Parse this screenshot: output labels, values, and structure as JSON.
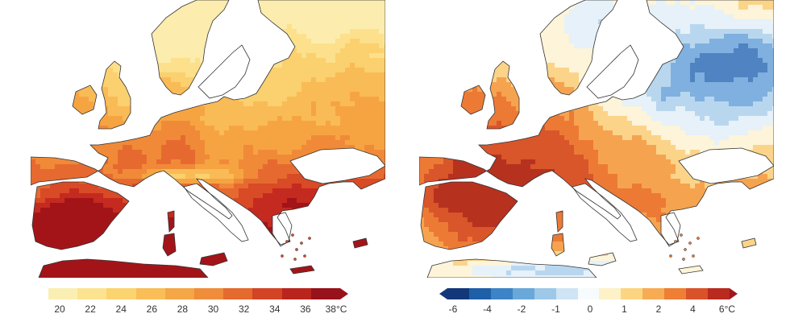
{
  "left_map": {
    "palette": [
      "#fcecae",
      "#fce08b",
      "#fbd06e",
      "#f9bb56",
      "#f6a442",
      "#f08a38",
      "#e66a2f",
      "#d94a26",
      "#c42a1f",
      "#a31419"
    ],
    "coast": "#333333",
    "sea": "#ffffff",
    "colorbar": {
      "colors": [
        "#fbeeb3",
        "#fce38f",
        "#fbd36f",
        "#f9be58",
        "#f5a646",
        "#ef8d3a",
        "#e46a2e",
        "#d24424",
        "#b9241d",
        "#97121a"
      ],
      "arrow_color": "#97121a",
      "tick_labels": [
        "20",
        "22",
        "24",
        "26",
        "28",
        "30",
        "32",
        "34",
        "36",
        "38°C"
      ]
    }
  },
  "right_map": {
    "palette": [
      "#4f83c1",
      "#7fb0df",
      "#b8d7ef",
      "#e6f1f9",
      "#fdf4d9",
      "#fbd48a",
      "#f6a34f",
      "#ec7a35",
      "#d9552a",
      "#b7311f"
    ],
    "coast": "#333333",
    "sea": "#ffffff",
    "colorbar": {
      "colors": [
        "#12387a",
        "#1f5fa8",
        "#3c84c5",
        "#6aa8d9",
        "#9dc8e8",
        "#cfe4f4",
        "#f7fbfd",
        "#fdf1c7",
        "#fcd582",
        "#f7ac54",
        "#ee7f34",
        "#d9522a",
        "#b92a1f"
      ],
      "left_arrow_color": "#12387a",
      "right_arrow_color": "#a3151b",
      "tick_labels": [
        "-6",
        "-4",
        "-2",
        "-1",
        "0",
        "1",
        "2",
        "4",
        "6°C"
      ]
    }
  }
}
